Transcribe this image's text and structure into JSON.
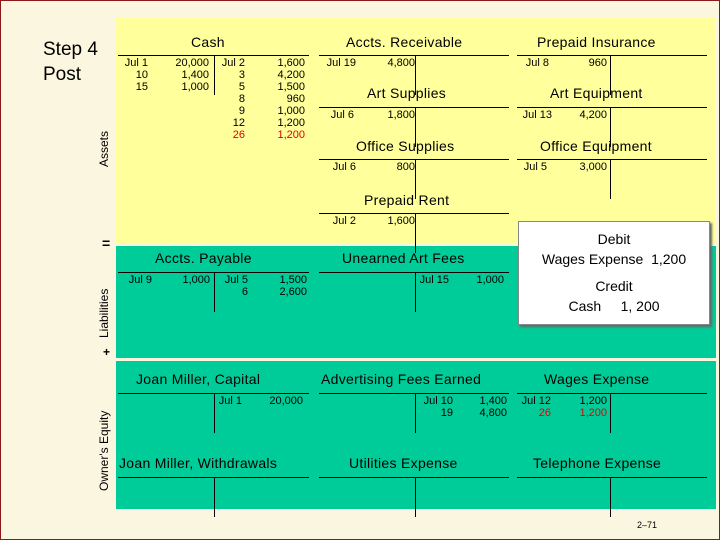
{
  "step": {
    "line1": "Step 4",
    "line2": "Post"
  },
  "labels": {
    "assets": "Assets",
    "equals": "=",
    "liabilities": "Liabilities",
    "plus": "+",
    "equity": "Owner's Equity"
  },
  "highlight_color": "#e00000",
  "accounts": [
    {
      "id": "cash",
      "title": "Cash",
      "debits": [
        {
          "date": "Jul 1",
          "amount": "20,000"
        },
        {
          "date": "10",
          "amount": "1,400"
        },
        {
          "date": "15",
          "amount": "1,000"
        }
      ],
      "credits": [
        {
          "date": "Jul 2",
          "amount": "1,600"
        },
        {
          "date": "3",
          "amount": "4,200"
        },
        {
          "date": "5",
          "amount": "1,500"
        },
        {
          "date": "8",
          "amount": "960"
        },
        {
          "date": "9",
          "amount": "1,000"
        },
        {
          "date": "12",
          "amount": "1,200"
        },
        {
          "date": "26",
          "amount": "1,200",
          "highlight": true
        }
      ]
    },
    {
      "id": "accounts-receivable",
      "title": "Accts. Receivable",
      "debits": [
        {
          "date": "Jul 19",
          "amount": "4,800"
        }
      ],
      "credits": []
    },
    {
      "id": "prepaid-insurance",
      "title": "Prepaid Insurance",
      "debits": [
        {
          "date": "Jul 8",
          "amount": "960"
        }
      ],
      "credits": []
    },
    {
      "id": "art-supplies",
      "title": "Art Supplies",
      "debits": [
        {
          "date": "Jul 6",
          "amount": "1,800"
        }
      ],
      "credits": []
    },
    {
      "id": "art-equipment",
      "title": "Art Equipment",
      "debits": [
        {
          "date": "Jul 13",
          "amount": "4,200"
        }
      ],
      "credits": []
    },
    {
      "id": "office-supplies",
      "title": "Office Supplies",
      "debits": [
        {
          "date": "Jul 6",
          "amount": "800"
        }
      ],
      "credits": []
    },
    {
      "id": "office-equipment",
      "title": "Office Equipment",
      "debits": [
        {
          "date": "Jul 5",
          "amount": "3,000"
        }
      ],
      "credits": []
    },
    {
      "id": "prepaid-rent",
      "title": "Prepaid Rent",
      "debits": [
        {
          "date": "Jul 2",
          "amount": "1,600"
        }
      ],
      "credits": []
    },
    {
      "id": "accounts-payable",
      "title": "Accts. Payable",
      "debits": [
        {
          "date": "Jul 9",
          "amount": "1,000"
        }
      ],
      "credits": [
        {
          "date": "Jul 5",
          "amount": "1,500"
        },
        {
          "date": "6",
          "amount": "2,600"
        }
      ]
    },
    {
      "id": "unearned-art-fees",
      "title": "Unearned Art Fees",
      "debits": [],
      "credits": [
        {
          "date": "Jul 15",
          "amount": "1,000"
        }
      ]
    },
    {
      "id": "capital",
      "title": "Joan Miller, Capital",
      "debits": [],
      "credits": [
        {
          "date": "Jul 1",
          "amount": "20,000"
        }
      ]
    },
    {
      "id": "advertising-fees-earned",
      "title": "Advertising Fees Earned",
      "debits": [],
      "credits": [
        {
          "date": "Jul 10",
          "amount": "1,400"
        },
        {
          "date": "19",
          "amount": "4,800"
        }
      ]
    },
    {
      "id": "wages-expense",
      "title": "Wages Expense",
      "debits": [
        {
          "date": "Jul 12",
          "amount": "1,200"
        },
        {
          "date": "26",
          "amount": "1,200",
          "highlight": true
        }
      ],
      "credits": []
    },
    {
      "id": "withdrawals",
      "title": "Joan Miller, Withdrawals",
      "debits": [],
      "credits": []
    },
    {
      "id": "utilities-expense",
      "title": "Utilities Expense",
      "debits": [],
      "credits": []
    },
    {
      "id": "telephone-expense",
      "title": "Telephone Expense",
      "debits": [],
      "credits": []
    }
  ],
  "entry": {
    "debit_heading": "Debit",
    "debit_line": "Wages Expense  1,200",
    "credit_heading": "Credit",
    "credit_line": "Cash     1, 200"
  },
  "page_number": "2–71"
}
